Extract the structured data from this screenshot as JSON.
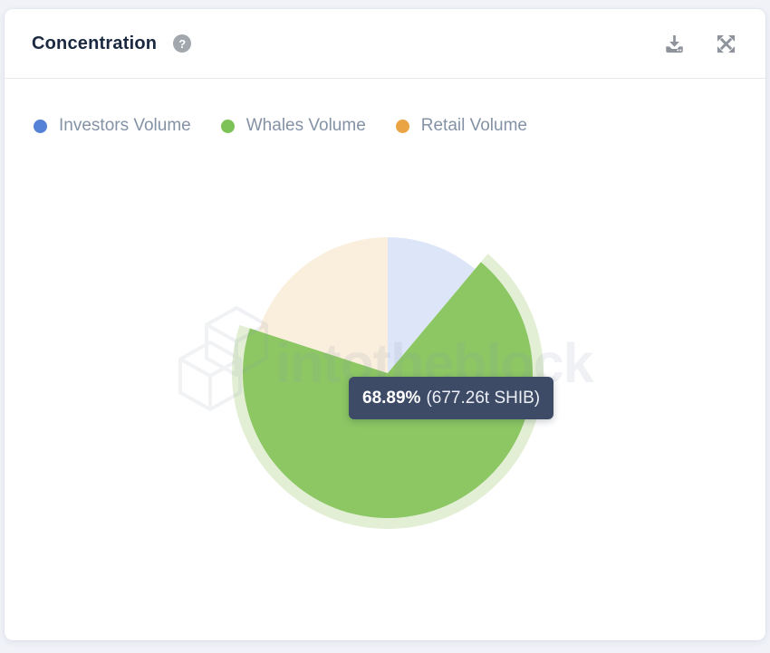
{
  "header": {
    "title": "Concentration",
    "icons": {
      "help": "question-mark-icon",
      "download": "download-icon",
      "expand": "fullscreen-expand-icon"
    },
    "help_glyph": "?"
  },
  "legend": {
    "items": [
      {
        "label": "Investors Volume",
        "color": "#5581d6"
      },
      {
        "label": "Whales Volume",
        "color": "#7cc257"
      },
      {
        "label": "Retail Volume",
        "color": "#eba443"
      }
    ]
  },
  "chart_data": {
    "type": "pie",
    "title": "Concentration",
    "unit": "SHIB",
    "legend_position": "top-left",
    "start_angle_deg": 0,
    "slices": [
      {
        "name": "Investors Volume",
        "percent": 11.11,
        "slice_color": "#dde6f8",
        "full_color": "#5581d6",
        "state": "faded"
      },
      {
        "name": "Whales Volume",
        "percent": 68.89,
        "amount": "677.26t SHIB",
        "slice_color": "#8cc764",
        "full_color": "#7cc257",
        "halo_color": "#e2efd5",
        "state": "highlighted"
      },
      {
        "name": "Retail Volume",
        "percent": 20.0,
        "slice_color": "#faeedd",
        "full_color": "#eba443",
        "state": "faded"
      }
    ],
    "watermark": "intotheblock"
  },
  "tooltip": {
    "percent": "68.89%",
    "amount": "(677.26t SHIB)"
  },
  "watermark": {
    "text": "intotheblock"
  }
}
